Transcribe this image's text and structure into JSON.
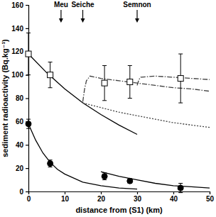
{
  "chart_data": {
    "type": "scatter",
    "xlabel": "distance from (S1) (km)",
    "ylabel": "sediment radioactivity (Bq.kg⁻¹)",
    "xlim": [
      0,
      50
    ],
    "ylim": [
      0,
      160
    ],
    "xticks": [
      0,
      10,
      20,
      30,
      40,
      50
    ],
    "yticks": [
      0,
      20,
      40,
      60,
      80,
      100,
      120,
      140,
      160
    ],
    "annotations": [
      {
        "text": "Meu",
        "x": 9
      },
      {
        "text": "Seiche",
        "x": 15
      },
      {
        "text": "Semnon",
        "x": 30
      }
    ],
    "series": [
      {
        "type": "scatter",
        "marker": "open-square",
        "color": "#000000",
        "x": [
          0,
          6,
          21,
          28,
          42
        ],
        "values": [
          118,
          100,
          93,
          94,
          97
        ],
        "errors": [
          18,
          11,
          15,
          14,
          21
        ]
      },
      {
        "type": "scatter",
        "marker": "circle",
        "color": "#000000",
        "x": [
          0,
          6,
          21,
          28,
          42
        ],
        "values": [
          58,
          24,
          13,
          9,
          3
        ],
        "errors": [
          4,
          3,
          3,
          2,
          4
        ]
      },
      {
        "type": "line",
        "line_style": "solid",
        "color": "#000000",
        "x": [
          0,
          5,
          10,
          15,
          20,
          25,
          30
        ],
        "values": [
          118,
          102,
          88,
          76,
          66,
          57,
          49
        ]
      },
      {
        "type": "line",
        "line_style": "dotted",
        "color": "#404040",
        "x": [
          15,
          20,
          25,
          30,
          35,
          40,
          45,
          50
        ],
        "values": [
          76,
          72,
          68,
          65,
          62,
          59,
          57,
          55
        ]
      },
      {
        "type": "line",
        "line_style": "dashdot",
        "color": "#404040",
        "x": [
          15,
          15.5,
          16,
          17,
          20,
          25,
          30,
          35,
          40,
          45,
          50
        ],
        "values": [
          77,
          88,
          95,
          99,
          97,
          95,
          93,
          91,
          89,
          88,
          86
        ]
      },
      {
        "type": "line",
        "line_style": "dashdot",
        "color": "#404040",
        "x": [
          30,
          30.5,
          31,
          35,
          40,
          45,
          50
        ],
        "values": [
          91,
          96,
          98,
          99,
          98,
          97,
          96
        ]
      },
      {
        "type": "line",
        "line_style": "solid",
        "color": "#000000",
        "x": [
          0,
          2,
          4,
          6,
          8,
          10,
          15,
          20,
          25,
          30
        ],
        "values": [
          58,
          44,
          33,
          25,
          19,
          15,
          8,
          5,
          3,
          2
        ]
      },
      {
        "type": "line",
        "line_style": "solid",
        "color": "#000000",
        "x": [
          20,
          25,
          30,
          35,
          40,
          45,
          50
        ],
        "values": [
          17,
          13,
          10,
          7,
          5,
          4,
          3
        ]
      }
    ]
  }
}
